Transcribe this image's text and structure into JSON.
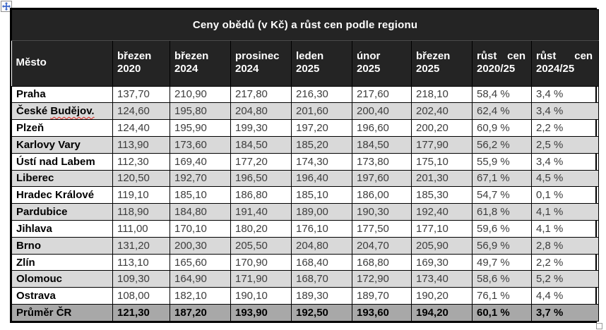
{
  "title": "Ceny obědů (v Kč) a růst cen podle regionu",
  "icons": {
    "move_handle": "move-icon",
    "resize_handle": "resize-icon"
  },
  "colors": {
    "header_bg": "#242424",
    "stripe_bg": "#d9d9d9",
    "footer_bg": "#a8a8a8",
    "border": "#000000",
    "spellcheck_red": "#e2261f",
    "handle_blue": "#3a66c9"
  },
  "table": {
    "columns": [
      {
        "key": "mesto",
        "line1": "Město",
        "line2": ""
      },
      {
        "key": "brezen-2020",
        "line1": "březen",
        "line2": "2020"
      },
      {
        "key": "brezen-2024",
        "line1": "březen",
        "line2": "2024"
      },
      {
        "key": "prosinec-2024",
        "line1": "prosinec",
        "line2": "2024"
      },
      {
        "key": "leden-2025",
        "line1": "leden",
        "line2": "2025"
      },
      {
        "key": "unor-2025",
        "line1": "únor",
        "line2": "2025"
      },
      {
        "key": "brezen-2025",
        "line1": "březen",
        "line2": "2025"
      },
      {
        "key": "rust-cen-2020-25",
        "line1": "růst cen",
        "line2": "2020/25"
      },
      {
        "key": "rust-cen-2024-25",
        "line1": "růst cen",
        "line2": "2024/25"
      }
    ],
    "rows": [
      {
        "city": "Praha",
        "values": [
          "137,70",
          "210,90",
          "217,80",
          "216,30",
          "217,60",
          "218,10",
          "58,4 %",
          "3,4 %"
        ]
      },
      {
        "city": "České Budějov.",
        "city_error_part": "Budějov.",
        "values": [
          "124,60",
          "195,80",
          "204,80",
          "201,60",
          "200,40",
          "202,40",
          "62,4 %",
          "3,4 %"
        ]
      },
      {
        "city": "Plzeň",
        "values": [
          "124,40",
          "195,90",
          "199,30",
          "197,20",
          "196,60",
          "200,20",
          "60,9 %",
          "2,2 %"
        ]
      },
      {
        "city": "Karlovy Vary",
        "values": [
          "113,90",
          "173,60",
          "184,50",
          "185,20",
          "184,50",
          "177,90",
          "56,2 %",
          "2,5 %"
        ]
      },
      {
        "city": "Ústí nad Labem",
        "values": [
          "112,30",
          "169,40",
          "177,20",
          "174,30",
          "173,80",
          "175,10",
          "55,9 %",
          "3,4 %"
        ]
      },
      {
        "city": "Liberec",
        "values": [
          "120,50",
          "192,70",
          "196,50",
          "196,40",
          "197,60",
          "201,30",
          "67,1 %",
          "4,5 %"
        ]
      },
      {
        "city": "Hradec Králové",
        "values": [
          "119,10",
          "185,10",
          "186,80",
          "185,10",
          "186,00",
          "185,30",
          "54,7 %",
          "0,1 %"
        ]
      },
      {
        "city": "Pardubice",
        "values": [
          "118,90",
          "184,80",
          "191,40",
          "189,00",
          "190,30",
          "192,40",
          "61,8 %",
          "4,1 %"
        ]
      },
      {
        "city": "Jihlava",
        "values": [
          "111,00",
          "170,10",
          "180,20",
          "176,10",
          "177,50",
          "177,10",
          "59,6 %",
          "4,1 %"
        ]
      },
      {
        "city": "Brno",
        "values": [
          "131,20",
          "200,30",
          "205,50",
          "204,80",
          "204,70",
          "205,90",
          "56,9 %",
          "2,8 %"
        ]
      },
      {
        "city": "Zlín",
        "values": [
          "113,10",
          "165,60",
          "170,90",
          "168,40",
          "168,80",
          "169,30",
          "49,7 %",
          "2,2 %"
        ]
      },
      {
        "city": "Olomouc",
        "values": [
          "109,30",
          "164,90",
          "171,90",
          "168,70",
          "172,90",
          "173,40",
          "58,6 %",
          "5,2 %"
        ]
      },
      {
        "city": "Ostrava",
        "values": [
          "108,00",
          "182,10",
          "190,10",
          "189,30",
          "189,70",
          "190,20",
          "76,1 %",
          "4,4 %"
        ]
      }
    ],
    "footer": {
      "city": "Průměr ČR",
      "values": [
        "121,30",
        "187,20",
        "193,90",
        "192,50",
        "193,60",
        "194,20",
        "60,1 %",
        "3,7 %"
      ]
    }
  }
}
